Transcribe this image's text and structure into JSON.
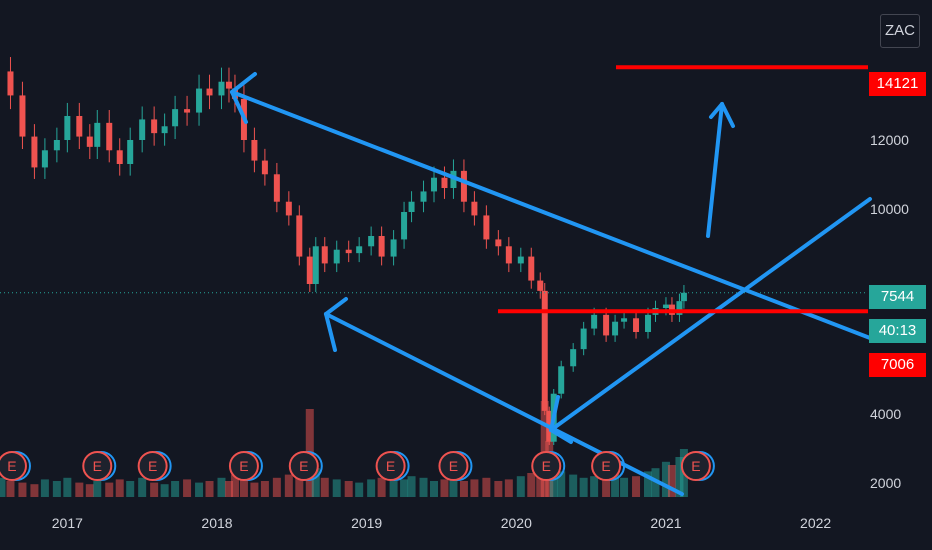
{
  "symbol_label": "ZAC",
  "colors": {
    "background": "#131722",
    "up_candle": "#26a69a",
    "down_candle": "#ef5350",
    "trendline": "#2196f3",
    "level_line": "#ff0000",
    "last_price_tag": "#26a69a",
    "level_tag": "#ff0000",
    "earnings_marker": "#ef5350"
  },
  "price_tags": {
    "target": "14121",
    "last_price": "7544",
    "countdown": "40:13",
    "support": "7006"
  },
  "earnings_marker_label": "E",
  "chart_data": {
    "type": "line",
    "title": "",
    "xlabel": "",
    "ylabel": "",
    "x_ticks": [
      "2017",
      "2018",
      "2019",
      "2020",
      "2021",
      "2022"
    ],
    "y_ticks": [
      2000,
      4000,
      10000,
      12000
    ],
    "ylim": [
      1500,
      15500
    ],
    "xlim": [
      2016.55,
      2022.35
    ],
    "grid": false,
    "legend": "none",
    "series": [
      {
        "x": [
          2016.56,
          2016.62,
          2016.7,
          2016.78,
          2016.85,
          2016.93,
          2017.0,
          2017.08,
          2017.15,
          2017.2,
          2017.28,
          2017.35,
          2017.42,
          2017.5,
          2017.58,
          2017.65,
          2017.72,
          2017.8,
          2017.88,
          2017.95,
          2018.03,
          2018.08,
          2018.12,
          2018.18,
          2018.25,
          2018.32,
          2018.4,
          2018.48,
          2018.55,
          2018.62,
          2018.66,
          2018.72,
          2018.8,
          2018.88,
          2018.95,
          2019.03,
          2019.1,
          2019.18,
          2019.25,
          2019.3,
          2019.38,
          2019.45,
          2019.52,
          2019.58,
          2019.65,
          2019.72,
          2019.8,
          2019.88,
          2019.95,
          2020.03,
          2020.1,
          2020.16,
          2020.19,
          2020.22,
          2020.25,
          2020.3,
          2020.38,
          2020.45,
          2020.52,
          2020.6,
          2020.66,
          2020.72,
          2020.8,
          2020.88,
          2020.93,
          2021.0,
          2021.04,
          2021.09,
          2021.12
        ],
        "y": [
          14000,
          13300,
          12100,
          11200,
          11700,
          12000,
          12700,
          12100,
          11800,
          12500,
          11700,
          11300,
          12000,
          12600,
          12200,
          12400,
          12900,
          12800,
          13500,
          13300,
          13700,
          13500,
          13200,
          12000,
          11400,
          11000,
          10200,
          9800,
          8600,
          7800,
          8900,
          8400,
          8800,
          8700,
          8900,
          9200,
          8600,
          9100,
          9900,
          10200,
          10500,
          10900,
          10600,
          11100,
          10200,
          9800,
          9100,
          8900,
          8400,
          8600,
          7900,
          7600,
          4100,
          3200,
          4600,
          5400,
          5900,
          6500,
          6900,
          6300,
          6700,
          6800,
          6400,
          6900,
          7100,
          7200,
          6900,
          7300,
          7544
        ],
        "volume": [
          12,
          10,
          9,
          8,
          11,
          10,
          12,
          9,
          8,
          10,
          9,
          11,
          10,
          12,
          9,
          8,
          10,
          11,
          9,
          10,
          12,
          10,
          14,
          11,
          9,
          10,
          12,
          14,
          16,
          55,
          18,
          12,
          11,
          10,
          9,
          11,
          12,
          10,
          11,
          13,
          12,
          10,
          11,
          12,
          10,
          11,
          12,
          10,
          11,
          13,
          15,
          25,
          60,
          35,
          20,
          16,
          14,
          12,
          13,
          15,
          14,
          12,
          13,
          16,
          18,
          22,
          20,
          25,
          30
        ]
      }
    ],
    "annotations": [
      {
        "type": "horizontal-level",
        "value": 14121
      },
      {
        "type": "horizontal-level",
        "value": 7006
      },
      {
        "type": "earnings-events",
        "label": "E",
        "x": [
          2016.63,
          2017.2,
          2017.57,
          2018.18,
          2018.58,
          2019.16,
          2019.58,
          2020.2,
          2020.6,
          2021.2
        ]
      }
    ]
  }
}
